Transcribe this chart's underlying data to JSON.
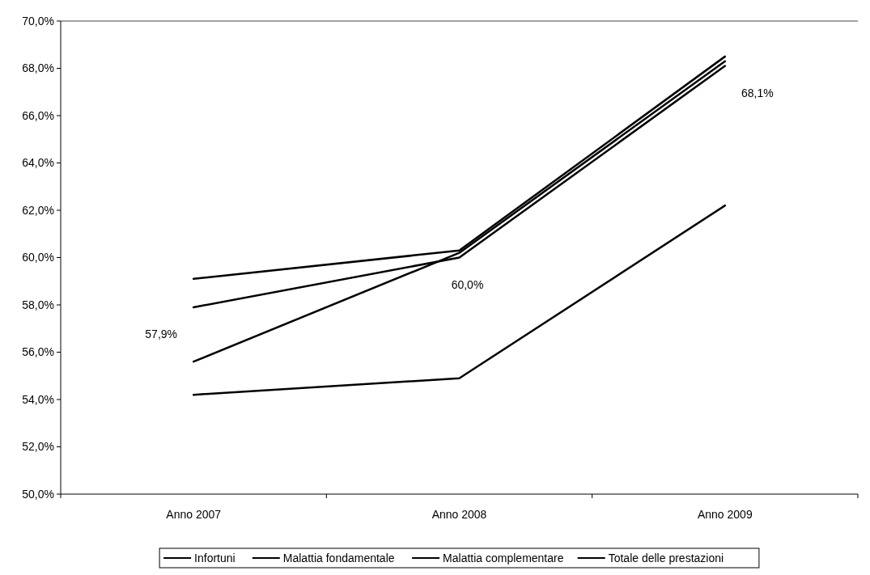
{
  "chart_data": {
    "type": "line",
    "categories": [
      "Anno 2007",
      "Anno 2008",
      "Anno 2009"
    ],
    "series": [
      {
        "name": "Infortuni",
        "color": "#000000",
        "values": [
          54.2,
          54.9,
          62.2
        ]
      },
      {
        "name": "Malattia fondamentale",
        "color": "#000000",
        "values": [
          59.1,
          60.3,
          68.5
        ]
      },
      {
        "name": "Malattia complementare",
        "color": "#000000",
        "values": [
          55.6,
          60.2,
          68.3
        ]
      },
      {
        "name": "Totale delle prestazioni",
        "color": "#000000",
        "values": [
          57.9,
          60.0,
          68.1
        ],
        "value_labels": [
          "57,9%",
          "60,0%",
          "68,1%"
        ]
      }
    ],
    "ylim": [
      50,
      70
    ],
    "yticks": [
      {
        "value": 50,
        "label": "50,0%"
      },
      {
        "value": 52,
        "label": "52,0%"
      },
      {
        "value": 54,
        "label": "54,0%"
      },
      {
        "value": 56,
        "label": "56,0%"
      },
      {
        "value": 58,
        "label": "58,0%"
      },
      {
        "value": 60,
        "label": "60,0%"
      },
      {
        "value": 62,
        "label": "62,0%"
      },
      {
        "value": 64,
        "label": "64,0%"
      },
      {
        "value": 66,
        "label": "66,0%"
      },
      {
        "value": 68,
        "label": "68,0%"
      },
      {
        "value": 70,
        "label": "70,0%"
      }
    ],
    "grid": false,
    "legend": "bottom",
    "marker": "none",
    "line_style": "solid"
  }
}
